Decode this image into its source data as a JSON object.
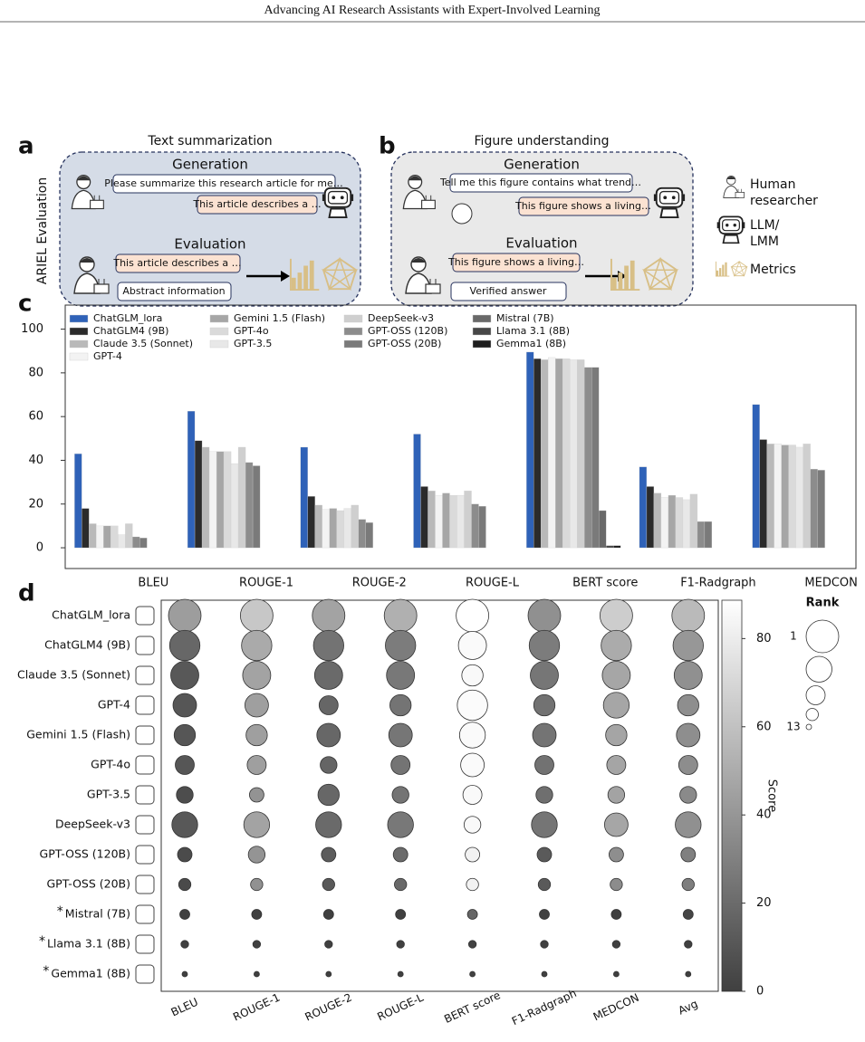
{
  "header": {
    "title": "Advancing AI Research Assistants with Expert-Involved Learning"
  },
  "panels": {
    "side_label": "ARIEL Evaluation",
    "a": {
      "label": "a",
      "title": "Text summarization",
      "generation": "Generation",
      "prompt": "Please summarize this research article for me…",
      "reply": "This article describes a …",
      "evaluation": "Evaluation",
      "answer": "This article describes a …",
      "reference": "Abstract information"
    },
    "b": {
      "label": "b",
      "title": "Figure understanding",
      "generation": "Generation",
      "prompt": "Tell me this figure contains what trend…",
      "reply": "This figure shows a living…",
      "evaluation": "Evaluation",
      "answer": "This figure shows a living…",
      "reference": "Verified answer"
    },
    "legend": [
      {
        "lines": [
          "Human",
          "researcher"
        ]
      },
      {
        "lines": [
          "LLM/",
          "LMM"
        ]
      },
      {
        "lines": [
          "Metrics"
        ]
      }
    ]
  },
  "chart_data": [
    {
      "label": "c",
      "type": "bar",
      "categories": [
        "BLEU",
        "ROUGE-1",
        "ROUGE-2",
        "ROUGE-L",
        "BERT score",
        "F1-Radgraph",
        "MEDCON"
      ],
      "ylim": [
        -9.5,
        111
      ],
      "yticks": [
        0,
        20,
        40,
        60,
        80,
        100
      ],
      "series": [
        {
          "name": "ChatGLM_lora",
          "color": "#2f62b8",
          "values": [
            43,
            62.5,
            46,
            52,
            89.5,
            37,
            65.5
          ]
        },
        {
          "name": "ChatGLM4 (9B)",
          "color": "#2b2b2b",
          "values": [
            18,
            49,
            23.5,
            28,
            86.5,
            28,
            49.5
          ]
        },
        {
          "name": "Claude 3.5 (Sonnet)",
          "color": "#b9b9b9",
          "values": [
            11,
            46,
            19.5,
            26,
            86,
            25,
            47.5
          ]
        },
        {
          "name": "GPT-4",
          "color": "#f3f3f3",
          "values": [
            10,
            44,
            17.5,
            24,
            87,
            23,
            47.5
          ]
        },
        {
          "name": "Gemini 1.5 (Flash)",
          "color": "#a6a6a6",
          "values": [
            10,
            44,
            18,
            25,
            86.5,
            24,
            47
          ]
        },
        {
          "name": "GPT-4o",
          "color": "#dadada",
          "values": [
            10,
            44,
            17,
            24,
            86.5,
            23,
            47
          ]
        },
        {
          "name": "GPT-3.5",
          "color": "#e8e8e8",
          "values": [
            6,
            38.5,
            18,
            24,
            86,
            22,
            46
          ]
        },
        {
          "name": "DeepSeek-v3",
          "color": "#cfcfcf",
          "values": [
            11,
            46,
            19.5,
            26,
            86,
            24.5,
            47.5
          ]
        },
        {
          "name": "GPT-OSS (120B)",
          "color": "#8c8c8c",
          "values": [
            5,
            39,
            13,
            20,
            82.5,
            12,
            36
          ]
        },
        {
          "name": "GPT-OSS (20B)",
          "color": "#7a7a7a",
          "values": [
            4.5,
            37.5,
            11.5,
            19,
            82.5,
            12,
            35.5
          ]
        },
        {
          "name": "Mistral (7B)",
          "color": "#696969",
          "values": [
            0,
            0,
            0,
            0,
            17,
            0,
            0
          ]
        },
        {
          "name": "Llama 3.1 (8B)",
          "color": "#474747",
          "values": [
            0,
            0,
            0,
            0,
            1,
            0,
            0
          ]
        },
        {
          "name": "Gemma1 (8B)",
          "color": "#1e1e1e",
          "values": [
            0,
            0,
            0,
            0,
            1,
            0,
            0
          ]
        }
      ]
    },
    {
      "label": "d",
      "type": "bubble",
      "categories": [
        "BLEU",
        "ROUGE-1",
        "ROUGE-2",
        "ROUGE-L",
        "BERT score",
        "F1-Radgraph",
        "MEDCON",
        "Avg"
      ],
      "series": [
        {
          "name": "ChatGLM_lora",
          "values": [
            43,
            62.5,
            46,
            52,
            89.5,
            37,
            65.5,
            56.5
          ],
          "ranks": [
            1,
            1,
            1,
            1,
            1,
            1,
            1,
            1
          ]
        },
        {
          "name": "ChatGLM4 (9B)",
          "values": [
            18,
            49,
            23.5,
            28,
            86.5,
            28,
            49.5,
            40.4
          ],
          "ranks": [
            2,
            2,
            2,
            2,
            3,
            2,
            2,
            2
          ]
        },
        {
          "name": "Claude 3.5 (Sonnet)",
          "values": [
            11,
            46,
            19.5,
            26,
            86,
            25,
            47.5,
            37.3
          ],
          "ranks": [
            3,
            3,
            3,
            3,
            6,
            3,
            3,
            3
          ]
        },
        {
          "name": "GPT-4",
          "values": [
            10,
            44,
            17.5,
            24,
            87,
            23,
            47.5,
            36.1
          ],
          "ranks": [
            5,
            5,
            7,
            6,
            2,
            6,
            4,
            6
          ]
        },
        {
          "name": "Gemini 1.5 (Flash)",
          "values": [
            10,
            44,
            18,
            25,
            86.5,
            24,
            47,
            36.4
          ],
          "ranks": [
            6,
            6,
            5,
            5,
            4,
            5,
            6,
            5
          ]
        },
        {
          "name": "GPT-4o",
          "values": [
            10,
            44,
            17,
            24,
            86.5,
            23,
            47,
            35.9
          ],
          "ranks": [
            7,
            7,
            8,
            7,
            5,
            7,
            7,
            7
          ]
        },
        {
          "name": "GPT-3.5",
          "values": [
            6,
            38.5,
            18,
            24,
            86,
            22,
            46,
            34.4
          ],
          "ranks": [
            8,
            9,
            6,
            8,
            7,
            8,
            8,
            8
          ]
        },
        {
          "name": "DeepSeek-v3",
          "values": [
            11,
            46,
            19.5,
            26,
            86,
            24.5,
            47.5,
            37.2
          ],
          "ranks": [
            4,
            4,
            4,
            4,
            8,
            4,
            5,
            4
          ]
        },
        {
          "name": "GPT-OSS (120B)",
          "values": [
            5,
            39,
            13,
            20,
            82.5,
            12,
            36,
            29.6
          ],
          "ranks": [
            9,
            8,
            9,
            9,
            9,
            9,
            9,
            9
          ]
        },
        {
          "name": "GPT-OSS (20B)",
          "values": [
            4.5,
            37.5,
            11.5,
            19,
            82.5,
            12,
            35.5,
            28.9
          ],
          "ranks": [
            10,
            10,
            10,
            10,
            10,
            10,
            10,
            10
          ]
        },
        {
          "name": "Mistral (7B)",
          "flag": "*",
          "values": [
            0,
            0,
            0,
            0,
            17,
            0,
            0,
            2.4
          ],
          "ranks": [
            11,
            11,
            11,
            11,
            11,
            11,
            11,
            11
          ]
        },
        {
          "name": "Llama 3.1 (8B)",
          "flag": "*",
          "values": [
            0,
            0,
            0,
            0,
            1,
            0,
            0,
            0.1
          ],
          "ranks": [
            12,
            12,
            12,
            12,
            12,
            12,
            12,
            12
          ]
        },
        {
          "name": "Gemma1 (8B)",
          "flag": "*",
          "values": [
            0,
            0,
            0,
            0,
            1,
            0,
            0,
            0.1
          ],
          "ranks": [
            13,
            13,
            13,
            13,
            13,
            13,
            13,
            13
          ]
        }
      ],
      "colorbar": {
        "label": "Score",
        "lim": [
          0,
          88.7
        ],
        "ticks": [
          0,
          20,
          40,
          60,
          80
        ]
      },
      "size_legend": {
        "title": "Rank",
        "ranks": [
          1,
          4,
          7,
          10,
          13
        ],
        "ticks": [
          1,
          13
        ]
      }
    }
  ]
}
